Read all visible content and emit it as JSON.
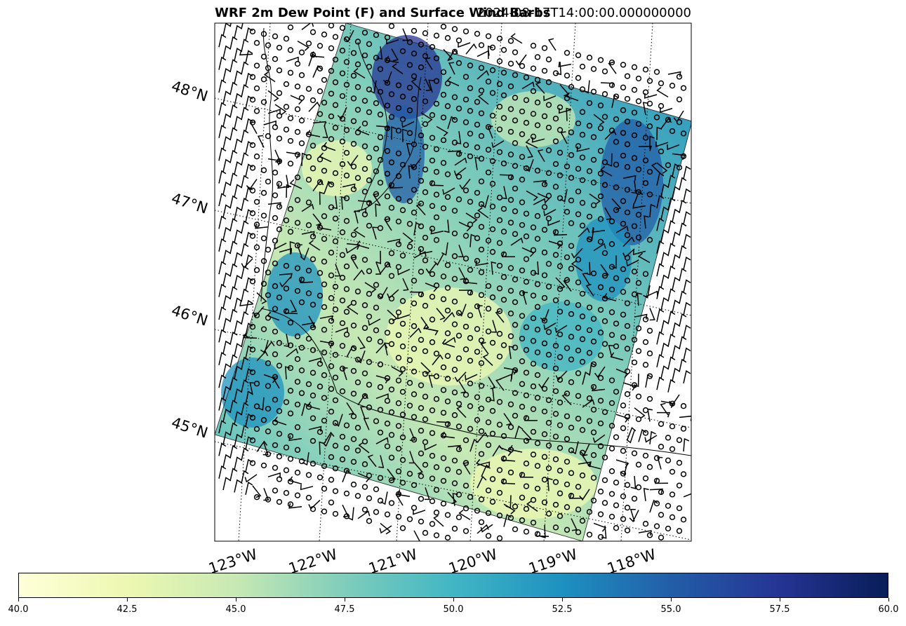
{
  "title": "WRF 2m Dew Point (F) and Surface Wind Barbs",
  "timestamp": "2024-08-17T14:00:00.000000000",
  "lat_labels": [
    "48°N",
    "47°N",
    "46°N",
    "45°N"
  ],
  "lon_labels": [
    "123°W",
    "122°W",
    "121°W",
    "120°W",
    "119°W",
    "118°W"
  ],
  "colorbar": {
    "colormap": "YlGnBu",
    "min": 40.0,
    "max": 60.0,
    "stops": [
      "#ffffd9",
      "#edf8b1",
      "#c7e9b4",
      "#7fcdbb",
      "#41b6c4",
      "#1d91c0",
      "#225ea8",
      "#253494",
      "#081d58"
    ],
    "tick_labels": [
      "40.0",
      "42.5",
      "45.0",
      "47.5",
      "50.0",
      "52.5",
      "55.0",
      "57.5",
      "60.0"
    ]
  }
}
